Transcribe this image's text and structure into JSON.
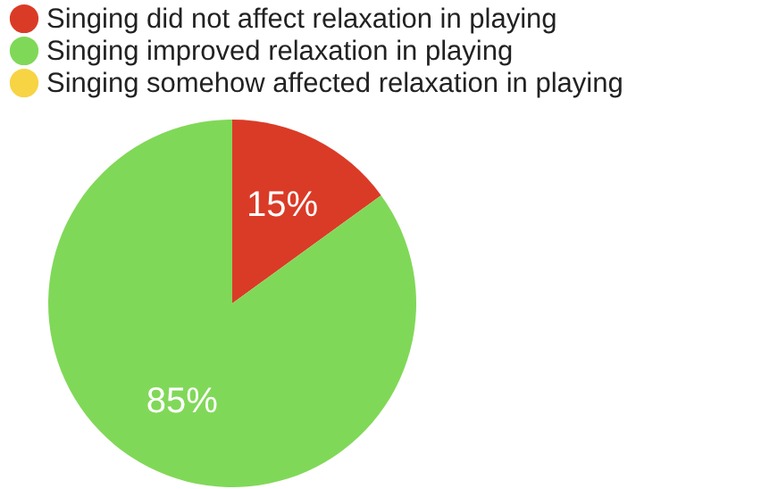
{
  "chart_data": {
    "type": "pie",
    "categories": [
      "Singing did not affect relaxation in playing",
      "Singing improved relaxation in playing",
      "Singing somehow affected relaxation in playing"
    ],
    "values": [
      15,
      85,
      0
    ],
    "colors": [
      "#da3b27",
      "#80d858",
      "#f7d444"
    ],
    "value_labels": [
      "15%",
      "85%",
      null
    ],
    "legend": "top"
  }
}
